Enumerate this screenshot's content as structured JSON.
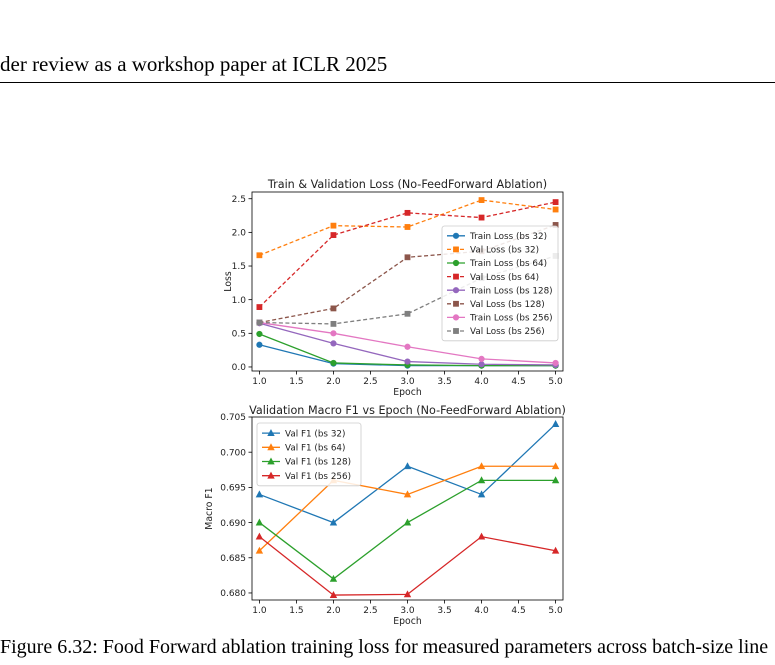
{
  "header": {
    "text": "der review as a workshop paper at ICLR 2025"
  },
  "caption": {
    "text": "Figure 6.32: Food Forward ablation training loss for measured parameters across batch-size line"
  },
  "chart_data": [
    {
      "type": "line",
      "title": "Train & Validation Loss (No-FeedForward Ablation)",
      "xlabel": "Epoch",
      "ylabel": "Loss",
      "x": [
        1,
        2,
        3,
        4,
        5
      ],
      "xlim": [
        0.9,
        5.1
      ],
      "ylim": [
        -0.06,
        2.6
      ],
      "xticks": [
        1.0,
        1.5,
        2.0,
        2.5,
        3.0,
        3.5,
        4.0,
        4.5,
        5.0
      ],
      "xtick_labels": [
        "1.0",
        "1.5",
        "2.0",
        "2.5",
        "3.0",
        "3.5",
        "4.0",
        "4.5",
        "5.0"
      ],
      "yticks": [
        0,
        0.5,
        1.0,
        1.5,
        2.0,
        2.5
      ],
      "ytick_labels": [
        "0.0",
        "0.5",
        "1.0",
        "1.5",
        "2.0",
        "2.5"
      ],
      "grid": false,
      "legend": "center-right",
      "series": [
        {
          "name": "Train Loss (bs 32)",
          "color": "#1f77b4",
          "dash": false,
          "marker": "circle",
          "values": [
            0.33,
            0.05,
            0.02,
            0.02,
            0.02
          ]
        },
        {
          "name": "Val Loss (bs 32)",
          "color": "#ff7f0e",
          "dash": true,
          "marker": "square",
          "values": [
            1.66,
            2.1,
            2.08,
            2.48,
            2.34
          ]
        },
        {
          "name": "Train Loss (bs 64)",
          "color": "#2ca02c",
          "dash": false,
          "marker": "circle",
          "values": [
            0.49,
            0.06,
            0.03,
            0.02,
            0.02
          ]
        },
        {
          "name": "Val Loss (bs 64)",
          "color": "#d62728",
          "dash": true,
          "marker": "square",
          "values": [
            0.89,
            1.96,
            2.29,
            2.22,
            2.45
          ]
        },
        {
          "name": "Train Loss (bs 128)",
          "color": "#9467bd",
          "dash": false,
          "marker": "circle",
          "values": [
            0.65,
            0.35,
            0.08,
            0.04,
            0.03
          ]
        },
        {
          "name": "Val Loss (bs 128)",
          "color": "#8c564b",
          "dash": true,
          "marker": "square",
          "values": [
            0.66,
            0.87,
            1.63,
            1.72,
            2.11
          ]
        },
        {
          "name": "Train Loss (bs 256)",
          "color": "#e377c2",
          "dash": false,
          "marker": "circle",
          "values": [
            0.66,
            0.5,
            0.3,
            0.12,
            0.06
          ]
        },
        {
          "name": "Val Loss (bs 256)",
          "color": "#7f7f7f",
          "dash": true,
          "marker": "square",
          "values": [
            0.66,
            0.64,
            0.79,
            1.32,
            1.65
          ]
        }
      ]
    },
    {
      "type": "line",
      "title": "Validation Macro F1 vs Epoch (No-FeedForward Ablation)",
      "xlabel": "Epoch",
      "ylabel": "Macro F1",
      "x": [
        1,
        2,
        3,
        4,
        5
      ],
      "xlim": [
        0.9,
        5.1
      ],
      "ylim": [
        0.679,
        0.705
      ],
      "xticks": [
        1.0,
        1.5,
        2.0,
        2.5,
        3.0,
        3.5,
        4.0,
        4.5,
        5.0
      ],
      "xtick_labels": [
        "1.0",
        "1.5",
        "2.0",
        "2.5",
        "3.0",
        "3.5",
        "4.0",
        "4.5",
        "5.0"
      ],
      "yticks": [
        0.68,
        0.685,
        0.69,
        0.695,
        0.7,
        0.705
      ],
      "ytick_labels": [
        "0.680",
        "0.685",
        "0.690",
        "0.695",
        "0.700",
        "0.705"
      ],
      "grid": false,
      "legend": "top-left",
      "series": [
        {
          "name": "Val F1 (bs 32)",
          "color": "#1f77b4",
          "dash": false,
          "marker": "triangle",
          "values": [
            0.694,
            0.69,
            0.698,
            0.694,
            0.704
          ]
        },
        {
          "name": "Val F1 (bs 64)",
          "color": "#ff7f0e",
          "dash": false,
          "marker": "triangle",
          "values": [
            0.686,
            0.696,
            0.694,
            0.698,
            0.698
          ]
        },
        {
          "name": "Val F1 (bs 128)",
          "color": "#2ca02c",
          "dash": false,
          "marker": "triangle",
          "values": [
            0.69,
            0.682,
            0.69,
            0.696,
            0.696
          ]
        },
        {
          "name": "Val F1 (bs 256)",
          "color": "#d62728",
          "dash": false,
          "marker": "triangle",
          "values": [
            0.688,
            0.6797,
            0.6798,
            0.688,
            0.686
          ]
        }
      ]
    }
  ]
}
